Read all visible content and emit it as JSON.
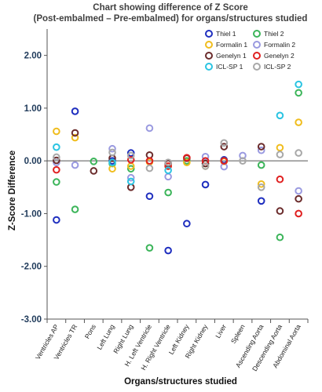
{
  "chart_data": {
    "type": "scatter",
    "title_line1": "Chart showing difference of Z Score",
    "title_line2": "(Post-embalmed – Pre-embalmed) for organs/structures studied",
    "xlabel": "Organs/structures studied",
    "ylabel": "Z-Score Difference",
    "ylim": [
      -3.0,
      2.5
    ],
    "yticks": [
      2.0,
      1.0,
      0.0,
      -1.0,
      -2.0,
      -3.0
    ],
    "ytick_labels": [
      "2.00",
      "1.00",
      "0.00",
      "-1.00",
      "-2.00",
      "-3.00"
    ],
    "grid": false,
    "legend_position": "top-right",
    "categories": [
      "Ventricles AP",
      "Ventricles TR",
      "Pons",
      "Left Lung",
      "Right Lung",
      "H. Left Ventricle",
      "H. Right Ventricle",
      "Left Kidney",
      "Right Kidney",
      "Liver",
      "Spleen",
      "Ascending Aorta",
      "Descending Aorta",
      "Abdominal Aorta"
    ],
    "series": [
      {
        "name": "Thiel 1",
        "color": "#1f2fbf",
        "values": [
          -1.12,
          0.94,
          null,
          0.0,
          0.15,
          -0.67,
          -1.7,
          -1.19,
          -0.45,
          0.02,
          null,
          -0.76,
          null,
          null
        ]
      },
      {
        "name": "Thiel 2",
        "color": "#3cb55a",
        "values": [
          -0.4,
          -0.92,
          -0.01,
          -0.05,
          -0.15,
          -1.65,
          -0.6,
          0.0,
          -0.05,
          0.0,
          null,
          -0.08,
          -1.45,
          1.29
        ]
      },
      {
        "name": "Formalin 1",
        "color": "#f0bd1e",
        "values": [
          0.56,
          0.44,
          null,
          -0.15,
          -0.1,
          -0.02,
          -0.1,
          -0.03,
          -0.1,
          -0.01,
          null,
          -0.44,
          0.25,
          0.73
        ]
      },
      {
        "name": "Formalin 2",
        "color": "#9a9ae0",
        "values": [
          -0.03,
          -0.08,
          null,
          0.23,
          -0.32,
          0.62,
          -0.3,
          null,
          0.08,
          -0.11,
          0.1,
          0.2,
          null,
          -0.57
        ]
      },
      {
        "name": "Genelyn 1",
        "color": "#6b2c2c",
        "values": [
          0.01,
          0.53,
          -0.19,
          0.05,
          -0.5,
          0.11,
          -0.05,
          0.05,
          -0.05,
          0.27,
          null,
          0.27,
          -0.95,
          -0.72
        ]
      },
      {
        "name": "Genelyn 2",
        "color": "#e02020",
        "values": [
          -0.17,
          null,
          null,
          null,
          0.02,
          0.0,
          -0.1,
          0.06,
          0.0,
          0.0,
          null,
          null,
          -0.35,
          -1.0
        ]
      },
      {
        "name": "ICL-SP 1",
        "color": "#2bc4e2",
        "values": [
          0.26,
          null,
          null,
          -0.03,
          -0.39,
          null,
          -0.18,
          null,
          null,
          null,
          null,
          null,
          0.86,
          1.45
        ]
      },
      {
        "name": "ICL-SP 2",
        "color": "#a8a8a8",
        "values": [
          0.07,
          null,
          null,
          0.16,
          0.1,
          -0.14,
          -0.03,
          null,
          -0.1,
          0.34,
          0.0,
          -0.5,
          0.12,
          0.15
        ]
      }
    ]
  }
}
